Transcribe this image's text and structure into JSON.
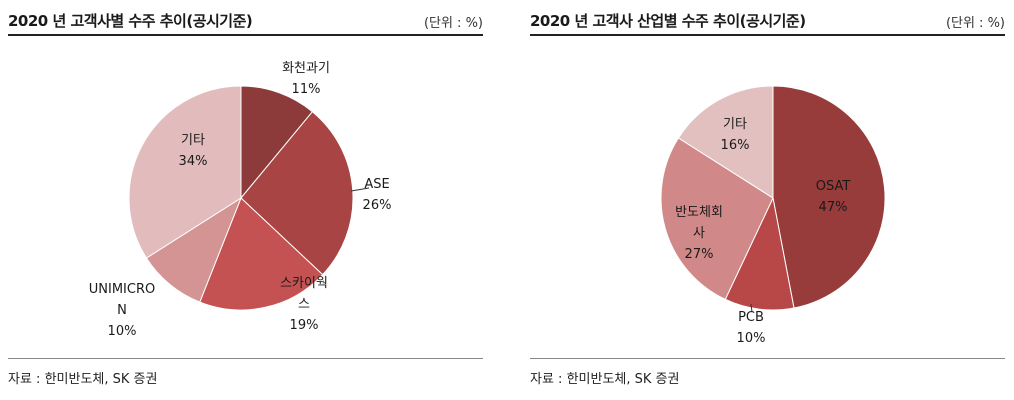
{
  "chart_data": [
    {
      "type": "pie",
      "title": "2020 년 고객사별 수주 추이(공시기준)",
      "unit": "(단위 : %)",
      "source": "자료 : 한미반도체, SK 증권",
      "series": [
        {
          "label_lines": [
            "화천과기"
          ],
          "value": 11,
          "value_text": "11%",
          "color": "#8d3a3a"
        },
        {
          "label_lines": [
            "ASE"
          ],
          "value": 26,
          "value_text": "26%",
          "color": "#a84444"
        },
        {
          "label_lines": [
            "스카이웍",
            "스"
          ],
          "value": 19,
          "value_text": "19%",
          "color": "#c55252"
        },
        {
          "label_lines": [
            "UNIMICRO",
            "N"
          ],
          "value": 10,
          "value_text": "10%",
          "color": "#d49494"
        },
        {
          "label_lines": [
            "기타"
          ],
          "value": 34,
          "value_text": "34%",
          "color": "#e2bcbc"
        }
      ]
    },
    {
      "type": "pie",
      "title": "2020 년 고객사 산업별 수주 추이(공시기준)",
      "unit": "(단위 : %)",
      "source": "자료 : 한미반도체, SK 증권",
      "series": [
        {
          "label_lines": [
            "OSAT"
          ],
          "value": 47,
          "value_text": "47%",
          "color": "#973b3b"
        },
        {
          "label_lines": [
            "PCB"
          ],
          "value": 10,
          "value_text": "10%",
          "color": "#b84848"
        },
        {
          "label_lines": [
            "반도체회",
            "사"
          ],
          "value": 27,
          "value_text": "27%",
          "color": "#d18888"
        },
        {
          "label_lines": [
            "기타"
          ],
          "value": 16,
          "value_text": "16%",
          "color": "#e3c0c0"
        }
      ]
    }
  ]
}
